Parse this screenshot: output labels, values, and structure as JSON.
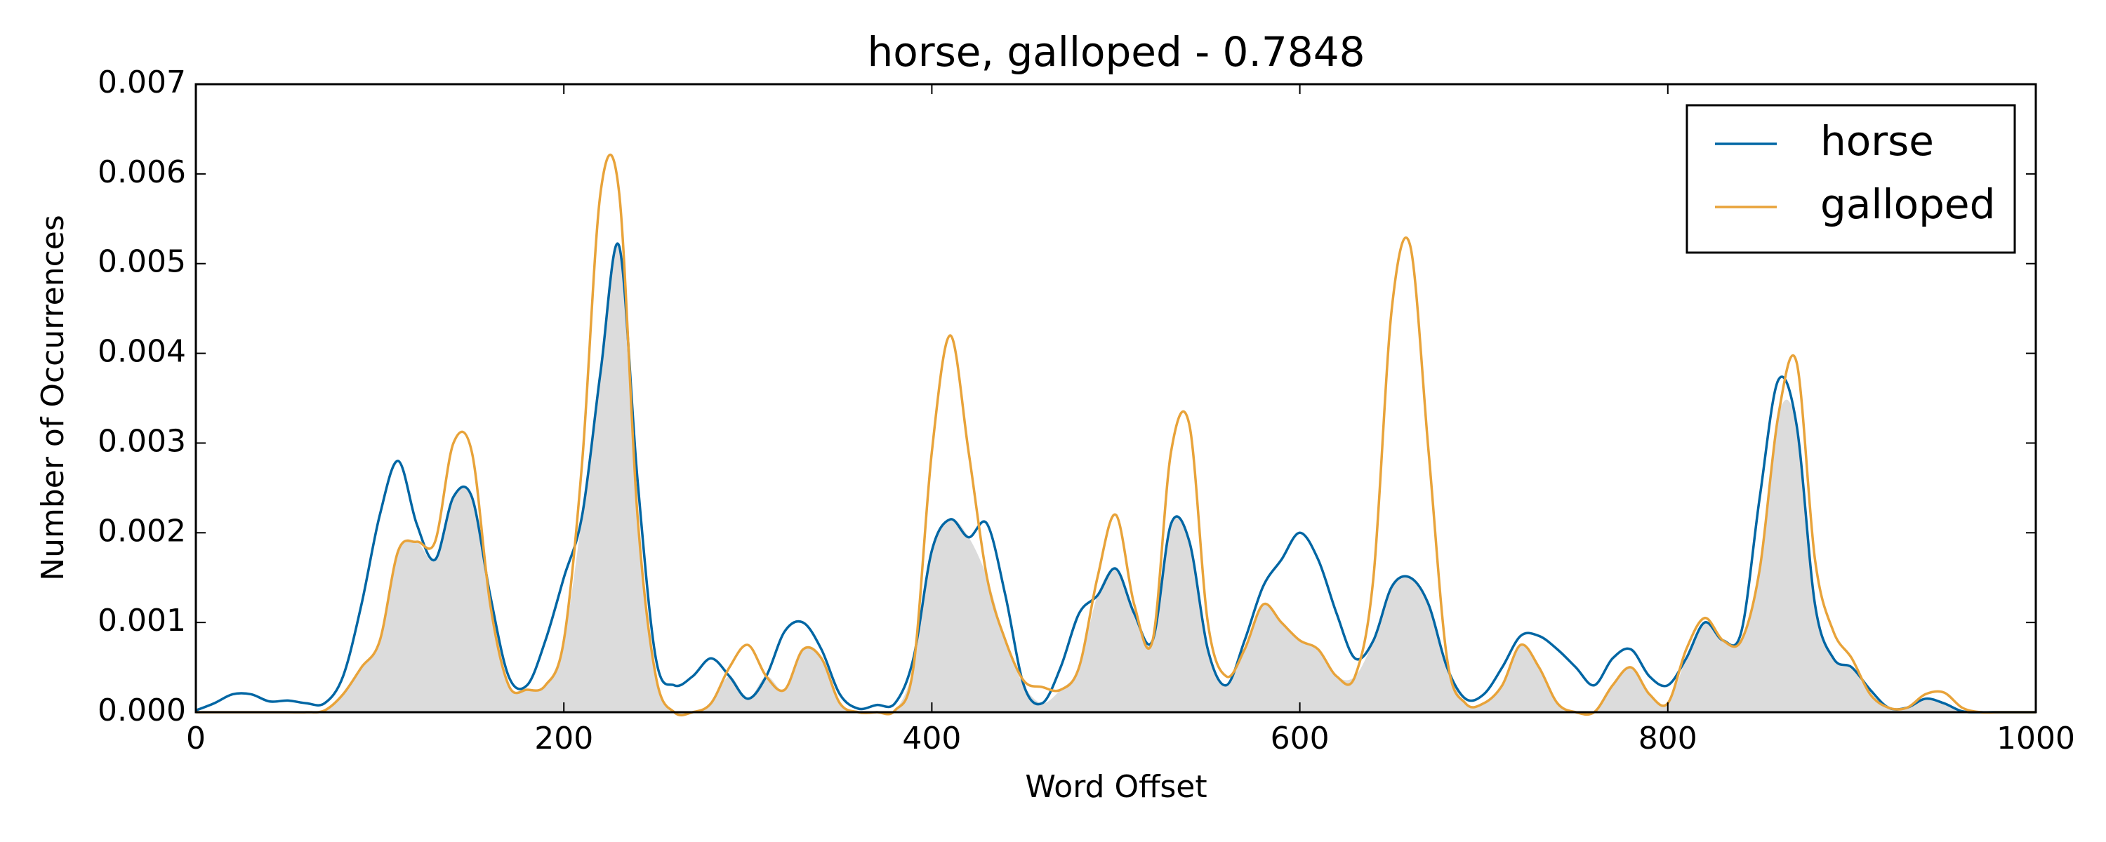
{
  "chart_data": {
    "type": "line",
    "title": "horse, galloped - 0.7848",
    "xlabel": "Word Offset",
    "ylabel": "Number of Occurrences",
    "x": [
      0,
      10,
      20,
      30,
      40,
      50,
      60,
      70,
      80,
      90,
      100,
      110,
      120,
      130,
      140,
      150,
      160,
      170,
      180,
      190,
      200,
      210,
      220,
      230,
      240,
      250,
      260,
      270,
      280,
      290,
      300,
      310,
      320,
      330,
      340,
      350,
      360,
      370,
      380,
      390,
      400,
      410,
      420,
      430,
      440,
      450,
      460,
      470,
      480,
      490,
      500,
      510,
      520,
      530,
      540,
      550,
      560,
      570,
      580,
      590,
      600,
      610,
      620,
      630,
      640,
      650,
      660,
      670,
      680,
      690,
      700,
      710,
      720,
      730,
      740,
      750,
      760,
      770,
      780,
      790,
      800,
      810,
      820,
      830,
      840,
      850,
      860,
      870,
      880,
      890,
      900,
      910,
      920,
      930,
      940,
      950,
      960,
      970,
      980,
      990,
      1000
    ],
    "series": [
      {
        "name": "horse",
        "color": "#0066a4",
        "values": [
          2e-05,
          0.0001,
          0.0002,
          0.0002,
          0.00012,
          0.00013,
          0.0001,
          0.0001,
          0.0004,
          0.0012,
          0.0022,
          0.0028,
          0.0021,
          0.0017,
          0.0024,
          0.0024,
          0.0013,
          0.0004,
          0.0003,
          0.0008,
          0.0015,
          0.0022,
          0.0038,
          0.0052,
          0.0026,
          0.0006,
          0.0003,
          0.0004,
          0.0006,
          0.0004,
          0.00015,
          0.0004,
          0.0009,
          0.001,
          0.0007,
          0.0002,
          4e-05,
          8e-05,
          0.0001,
          0.0006,
          0.0018,
          0.00215,
          0.00195,
          0.0021,
          0.0013,
          0.0003,
          0.0001,
          0.0005,
          0.0011,
          0.0013,
          0.0016,
          0.0011,
          0.0008,
          0.0021,
          0.0019,
          0.0007,
          0.0003,
          0.0008,
          0.0014,
          0.0017,
          0.002,
          0.0017,
          0.0011,
          0.0006,
          0.0008,
          0.0014,
          0.0015,
          0.0012,
          0.0005,
          0.00015,
          0.0002,
          0.0005,
          0.00085,
          0.00085,
          0.0007,
          0.0005,
          0.0003,
          0.0006,
          0.0007,
          0.0004,
          0.0003,
          0.0006,
          0.001,
          0.0008,
          0.0009,
          0.0024,
          0.0037,
          0.0032,
          0.0012,
          0.0006,
          0.0005,
          0.00025,
          5e-05,
          5e-05,
          0.00015,
          0.0001,
          1e-05,
          0,
          0,
          0,
          0
        ]
      },
      {
        "name": "galloped",
        "color": "#e8a33a",
        "values": [
          0,
          0,
          0,
          0,
          0,
          0,
          0,
          2e-05,
          0.0002,
          0.0005,
          0.0008,
          0.0018,
          0.0019,
          0.0019,
          0.003,
          0.0029,
          0.0012,
          0.0003,
          0.00025,
          0.0003,
          0.0008,
          0.0028,
          0.0058,
          0.0058,
          0.0022,
          0.0004,
          0,
          0,
          0.0001,
          0.0005,
          0.00075,
          0.0004,
          0.00025,
          0.0007,
          0.0006,
          0.0001,
          0,
          0,
          2e-05,
          0.0005,
          0.0029,
          0.0042,
          0.0029,
          0.0015,
          0.0008,
          0.00035,
          0.00028,
          0.00025,
          0.0005,
          0.0015,
          0.0022,
          0.0012,
          0.0008,
          0.0029,
          0.0032,
          0.001,
          0.0004,
          0.0007,
          0.0012,
          0.001,
          0.0008,
          0.0007,
          0.0004,
          0.0004,
          0.0015,
          0.0045,
          0.0052,
          0.0029,
          0.0006,
          0.0001,
          0.0001,
          0.0003,
          0.00075,
          0.0005,
          0.0001,
          0,
          0,
          0.0003,
          0.0005,
          0.0002,
          0.0001,
          0.0007,
          0.00105,
          0.0008,
          0.0008,
          0.0016,
          0.0033,
          0.0039,
          0.0017,
          0.0009,
          0.0006,
          0.0002,
          5e-05,
          5e-05,
          0.0002,
          0.00022,
          5e-05,
          0,
          0,
          0,
          0
        ]
      }
    ],
    "overlap_color": "#dcdcdc",
    "xlim": [
      0,
      1000
    ],
    "xticks": [
      0,
      200,
      400,
      600,
      800,
      1000
    ],
    "ylim": [
      0,
      0.007
    ],
    "yticks": [
      {
        "value": 0,
        "label": "0.000"
      },
      0.001,
      0.002,
      0.003,
      0.004,
      0.005,
      0.006,
      0.007
    ],
    "legend": "upper right",
    "grid": false
  }
}
